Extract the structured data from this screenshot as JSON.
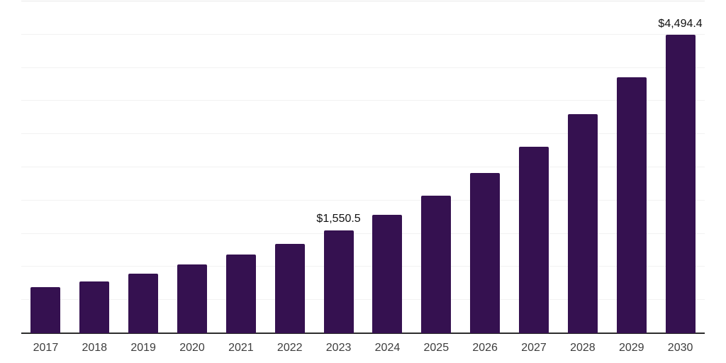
{
  "chart_data": {
    "type": "bar",
    "categories": [
      "2017",
      "2018",
      "2019",
      "2020",
      "2021",
      "2022",
      "2023",
      "2024",
      "2025",
      "2026",
      "2027",
      "2028",
      "2029",
      "2030"
    ],
    "values": [
      695,
      785,
      900,
      1040,
      1183,
      1346,
      1550.5,
      1787,
      2072,
      2410,
      2812,
      3304,
      3853,
      4494.4
    ],
    "data_labels": [
      "",
      "",
      "",
      "",
      "",
      "",
      "$1,550.5",
      "",
      "",
      "",
      "",
      "",
      "",
      "$4,494.4"
    ],
    "title": "",
    "xlabel": "",
    "ylabel": "",
    "ylim": [
      0,
      5000
    ],
    "gridline_step": 500,
    "grid": "horizontal",
    "legend": "none",
    "y_tick_labels_visible": false,
    "colors": {
      "bar": "#351150",
      "axis_line": "#2d2d2d",
      "gridline": "#f2f2f2",
      "top_gridline": "#e9e9e9",
      "x_tick_label": "#3d3d3d",
      "data_label": "#111111",
      "background": "#ffffff"
    }
  }
}
